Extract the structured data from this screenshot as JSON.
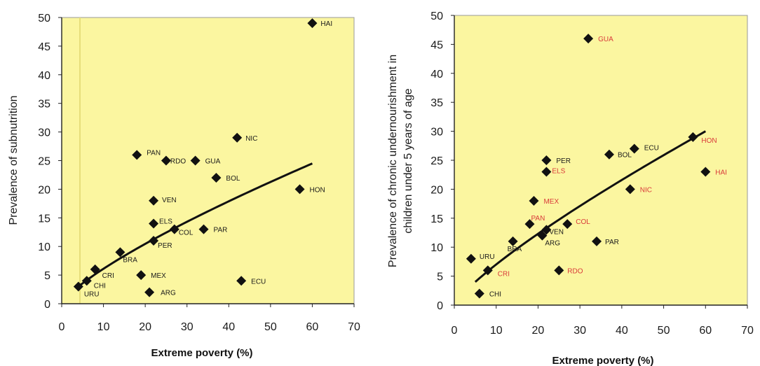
{
  "colors": {
    "plot_bg": "#fbf6a0",
    "marker": "#111111",
    "trend": "#111111",
    "label_black": "#1a1a1a",
    "label_red": "#d93a3a"
  },
  "chart_data": [
    {
      "type": "scatter",
      "xlabel": "Extreme poverty (%)",
      "ylabel": "Prevalence of subnutrition",
      "xlim": [
        0,
        70
      ],
      "ylim": [
        0,
        50
      ],
      "xticks": [
        "0",
        "10",
        "20",
        "30",
        "40",
        "50",
        "60",
        "70"
      ],
      "yticks": [
        "0",
        "5",
        "10",
        "15",
        "20",
        "25",
        "30",
        "35",
        "40",
        "45",
        "50"
      ],
      "grid": false,
      "points": [
        {
          "label": "HAI",
          "x": 60,
          "y": 49,
          "color": "black"
        },
        {
          "label": "NIC",
          "x": 42,
          "y": 29,
          "color": "black"
        },
        {
          "label": "PAN",
          "x": 18,
          "y": 26,
          "color": "black"
        },
        {
          "label": "RDO",
          "x": 25,
          "y": 25,
          "color": "black"
        },
        {
          "label": "GUA",
          "x": 32,
          "y": 25,
          "color": "black"
        },
        {
          "label": "BOL",
          "x": 37,
          "y": 22,
          "color": "black"
        },
        {
          "label": "HON",
          "x": 57,
          "y": 20,
          "color": "black"
        },
        {
          "label": "VEN",
          "x": 22,
          "y": 18,
          "color": "black"
        },
        {
          "label": "ELS",
          "x": 22,
          "y": 14,
          "color": "black"
        },
        {
          "label": "COL",
          "x": 27,
          "y": 13,
          "color": "black"
        },
        {
          "label": "PAR",
          "x": 34,
          "y": 13,
          "color": "black"
        },
        {
          "label": "PER",
          "x": 22,
          "y": 11,
          "color": "black"
        },
        {
          "label": "BRA",
          "x": 14,
          "y": 9,
          "color": "black"
        },
        {
          "label": "CRI",
          "x": 8,
          "y": 6,
          "color": "black"
        },
        {
          "label": "MEX",
          "x": 19,
          "y": 5,
          "color": "black"
        },
        {
          "label": "CHI",
          "x": 6,
          "y": 4,
          "color": "black"
        },
        {
          "label": "ECU",
          "x": 43,
          "y": 4,
          "color": "black"
        },
        {
          "label": "URU",
          "x": 4,
          "y": 3,
          "color": "black"
        },
        {
          "label": "ARG",
          "x": 21,
          "y": 2,
          "color": "black"
        }
      ],
      "trendline": {
        "x": [
          4,
          60
        ],
        "y": [
          3,
          24.5
        ],
        "shape": "power"
      }
    },
    {
      "type": "scatter",
      "xlabel": "Extreme poverty (%)",
      "ylabel": "Prevalence of chronic undernourishment in children under 5 years of age",
      "xlim": [
        0,
        70
      ],
      "ylim": [
        0,
        50
      ],
      "xticks": [
        "0",
        "10",
        "20",
        "30",
        "40",
        "50",
        "60",
        "70"
      ],
      "yticks": [
        "0",
        "5",
        "10",
        "15",
        "20",
        "25",
        "30",
        "35",
        "40",
        "45",
        "50"
      ],
      "grid": false,
      "points": [
        {
          "label": "GUA",
          "x": 32,
          "y": 46,
          "color": "red"
        },
        {
          "label": "HON",
          "x": 57,
          "y": 29,
          "color": "red"
        },
        {
          "label": "ECU",
          "x": 43,
          "y": 27,
          "color": "black"
        },
        {
          "label": "BOL",
          "x": 37,
          "y": 26,
          "color": "black"
        },
        {
          "label": "PER",
          "x": 22,
          "y": 25,
          "color": "black"
        },
        {
          "label": "ELS",
          "x": 22,
          "y": 23,
          "color": "red"
        },
        {
          "label": "HAI",
          "x": 60,
          "y": 23,
          "color": "red"
        },
        {
          "label": "NIC",
          "x": 42,
          "y": 20,
          "color": "red"
        },
        {
          "label": "MEX",
          "x": 19,
          "y": 18,
          "color": "red"
        },
        {
          "label": "PAN",
          "x": 18,
          "y": 14,
          "color": "red"
        },
        {
          "label": "COL",
          "x": 27,
          "y": 14,
          "color": "red"
        },
        {
          "label": "VEN",
          "x": 22,
          "y": 13,
          "color": "black"
        },
        {
          "label": "ARG",
          "x": 21,
          "y": 12,
          "color": "black"
        },
        {
          "label": "BRA",
          "x": 14,
          "y": 11,
          "color": "black"
        },
        {
          "label": "PAR",
          "x": 34,
          "y": 11,
          "color": "black"
        },
        {
          "label": "URU",
          "x": 4,
          "y": 8,
          "color": "black"
        },
        {
          "label": "CRI",
          "x": 8,
          "y": 6,
          "color": "red"
        },
        {
          "label": "RDO",
          "x": 25,
          "y": 6,
          "color": "red"
        },
        {
          "label": "CHI",
          "x": 6,
          "y": 2,
          "color": "black"
        }
      ],
      "trendline": {
        "x": [
          5,
          60
        ],
        "y": [
          4,
          30
        ],
        "shape": "power"
      }
    }
  ]
}
